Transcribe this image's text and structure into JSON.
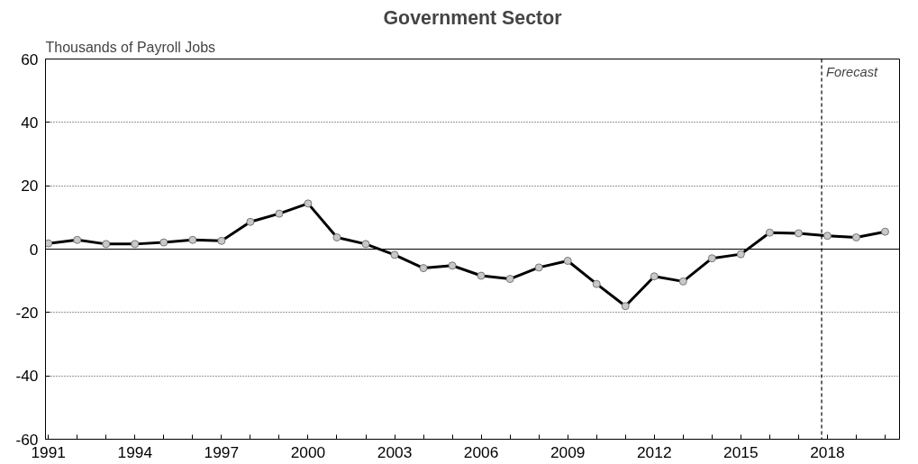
{
  "chart_data": {
    "type": "line",
    "title": "Government Sector",
    "ylabel": "Thousands of Payroll Jobs",
    "x": [
      1991,
      1992,
      1993,
      1994,
      1995,
      1996,
      1997,
      1998,
      1999,
      2000,
      2001,
      2002,
      2003,
      2004,
      2005,
      2006,
      2007,
      2008,
      2009,
      2010,
      2011,
      2012,
      2013,
      2014,
      2015,
      2016,
      2017,
      2018,
      2019,
      2020
    ],
    "series": [
      {
        "color": "#000000",
        "values": [
          1.8,
          2.9,
          1.6,
          1.6,
          2.1,
          2.9,
          2.6,
          8.6,
          11.2,
          14.4,
          3.7,
          1.6,
          -1.8,
          -6.0,
          -5.2,
          -8.4,
          -9.4,
          -5.8,
          -3.7,
          -11,
          -18,
          -8.6,
          -10.2,
          -2.9,
          -1.6,
          5.2,
          5.0,
          4.2,
          3.7,
          5.5
        ]
      }
    ],
    "xlim": [
      1990.9,
      2020.5
    ],
    "xticks": [
      1991,
      {
        "value": 1992,
        "label": null
      },
      {
        "value": 1993,
        "label": null
      },
      1994,
      {
        "value": 1995,
        "label": null
      },
      {
        "value": 1996,
        "label": null
      },
      1997,
      {
        "value": 1998,
        "label": null
      },
      {
        "value": 1999,
        "label": null
      },
      2000,
      {
        "value": 2001,
        "label": null
      },
      {
        "value": 2002,
        "label": null
      },
      2003,
      {
        "value": 2004,
        "label": null
      },
      {
        "value": 2005,
        "label": null
      },
      2006,
      {
        "value": 2007,
        "label": null
      },
      {
        "value": 2008,
        "label": null
      },
      2009,
      {
        "value": 2010,
        "label": null
      },
      {
        "value": 2011,
        "label": null
      },
      2012,
      {
        "value": 2013,
        "label": null
      },
      {
        "value": 2014,
        "label": null
      },
      2015,
      {
        "value": 2016,
        "label": null
      },
      {
        "value": 2017,
        "label": null
      },
      2018,
      {
        "value": 2019,
        "label": null
      },
      {
        "value": 2020,
        "label": null
      }
    ],
    "ylim": [
      -60,
      60
    ],
    "yticks": [
      -60,
      -40,
      -20,
      0,
      20,
      40,
      60
    ],
    "ref_lines": [
      {
        "axis": "y",
        "value": 0,
        "label": null,
        "color": "#000000",
        "line_style": "solid"
      },
      {
        "axis": "x",
        "value": 2017.8,
        "label": "Forecast",
        "color": "#000000",
        "line_style": "dashed"
      }
    ],
    "grid": "y",
    "marker": "circle",
    "line_style": "solid"
  }
}
